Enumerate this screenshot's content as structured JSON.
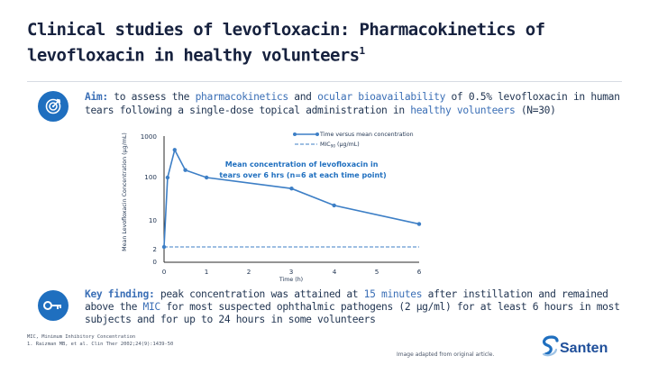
{
  "slide": {
    "title_line1": "Clinical studies of levofloxacin: Pharmacokinetics of",
    "title_line2": "levofloxacin in healthy volunteers",
    "title_superscript": "1"
  },
  "aim": {
    "icon": "target-icon",
    "label": "Aim:",
    "t1": " to assess the ",
    "hl1": "pharmacokinetics",
    "t2": " and ",
    "hl2": "ocular bioavailability",
    "t3": " of 0.5% levofloxacin in human tears following a single-dose topical administration in ",
    "hl3": "healthy volunteers",
    "t4": " (N=30)"
  },
  "key": {
    "icon": "key-icon",
    "label": "Key finding:",
    "t1": " peak concentration was attained at ",
    "hl1": "15 minutes",
    "t2": " after instillation and remained above the ",
    "hl2": "MIC",
    "t3": " for most suspected ophthalmic pathogens (2 μg/ml) for at least 6 hours in most subjects and for up to 24 hours in some volunteers"
  },
  "footnotes": {
    "line1": "MIC, Minimum Inhibitory Concentration",
    "line2": "1. Raizman MB, et al. Clin Ther 2002;24(9):1439-50",
    "adapted": "Image adapted from original article."
  },
  "logo": {
    "name": "Santen"
  },
  "colors": {
    "brand_blue": "#1f6fbf",
    "highlight_blue": "#3b6fb6",
    "series_blue": "#3d7fc6",
    "title": "#16213e"
  },
  "chart_data": {
    "type": "line",
    "ylabel": "Mean Levofloxacin Concentration (μg/mL)",
    "xlabel": "Time (h)",
    "xlim": [
      0,
      6
    ],
    "x_ticks": [
      "0",
      "1",
      "2",
      "3",
      "4",
      "5",
      "6"
    ],
    "y_scale": "log",
    "y_ticks": [
      "1000",
      "100",
      "10",
      "2",
      "0"
    ],
    "annotation": "Mean concentration of levofloxacin in tears over 6 hrs (n=6 at each time point)",
    "legend_position": "top-right",
    "series": [
      {
        "name": "Time versus mean concentration",
        "style": "solid-with-markers",
        "x": [
          0,
          0.083,
          0.25,
          0.5,
          1,
          3,
          4,
          6
        ],
        "y": [
          2.3,
          100,
          450,
          150,
          100,
          55,
          22,
          8
        ]
      },
      {
        "name": "MIC",
        "name_subscript": "90",
        "name_suffix": " (μg/mL)",
        "style": "dashed",
        "x": [
          0,
          6
        ],
        "y": [
          2,
          2
        ]
      }
    ]
  }
}
